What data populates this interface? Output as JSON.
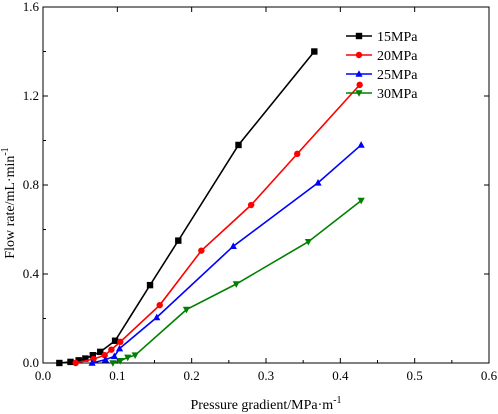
{
  "chart_data": {
    "type": "line",
    "xlabel": "Pressure gradient/MPa·m",
    "xlabel_sup": "-1",
    "ylabel": "Flow rate/mL·min",
    "ylabel_sup": "-1",
    "xlim": [
      0.0,
      0.6
    ],
    "ylim": [
      0.0,
      1.6
    ],
    "x_ticks": [
      0.0,
      0.1,
      0.2,
      0.3,
      0.4,
      0.5,
      0.6
    ],
    "x_tick_labels": [
      "0.0",
      "0.1",
      "0.2",
      "0.3",
      "0.4",
      "0.5",
      "0.6"
    ],
    "y_ticks": [
      0.0,
      0.4,
      0.8,
      1.2,
      1.6
    ],
    "y_tick_labels": [
      "0.0",
      "0.4",
      "0.8",
      "1.2",
      "1.6"
    ],
    "grid": false,
    "legend_position": "top-right",
    "series": [
      {
        "name": "15MPa",
        "color": "#000000",
        "marker": "square",
        "x": [
          0.022,
          0.037,
          0.048,
          0.057,
          0.067,
          0.077,
          0.097,
          0.144,
          0.182,
          0.263,
          0.365
        ],
        "y": [
          0.0,
          0.005,
          0.012,
          0.02,
          0.035,
          0.05,
          0.1,
          0.35,
          0.55,
          0.98,
          1.4
        ]
      },
      {
        "name": "20MPa",
        "color": "#ff0000",
        "marker": "circle",
        "x": [
          0.044,
          0.068,
          0.083,
          0.092,
          0.104,
          0.157,
          0.213,
          0.28,
          0.342,
          0.426
        ],
        "y": [
          0.0,
          0.018,
          0.035,
          0.06,
          0.095,
          0.26,
          0.505,
          0.71,
          0.94,
          1.25
        ]
      },
      {
        "name": "25MPa",
        "color": "#0000ff",
        "marker": "triangle-up",
        "x": [
          0.066,
          0.084,
          0.096,
          0.103,
          0.153,
          0.256,
          0.37,
          0.428
        ],
        "y": [
          0.0,
          0.015,
          0.03,
          0.065,
          0.205,
          0.525,
          0.81,
          0.98
        ]
      },
      {
        "name": "30MPa",
        "color": "#008000",
        "marker": "triangle-down",
        "x": [
          0.094,
          0.104,
          0.114,
          0.124,
          0.193,
          0.26,
          0.357,
          0.428
        ],
        "y": [
          0.0,
          0.01,
          0.025,
          0.035,
          0.24,
          0.355,
          0.545,
          0.73
        ]
      }
    ]
  }
}
